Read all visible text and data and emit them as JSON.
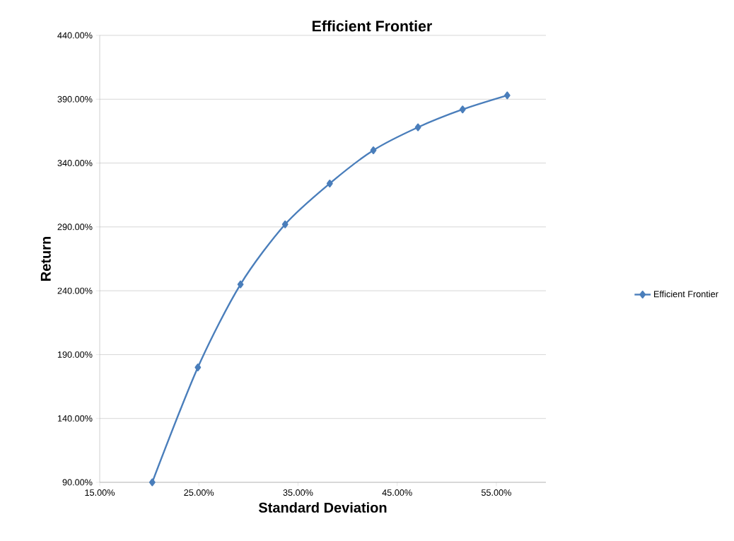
{
  "chart_data": {
    "type": "line",
    "title": "Efficient Frontier",
    "xlabel": "Standard Deviation",
    "ylabel": "Return",
    "x": [
      20.3,
      24.9,
      29.2,
      33.7,
      38.2,
      42.6,
      47.1,
      51.6,
      56.1
    ],
    "series": [
      {
        "name": "Efficient Frontier",
        "color": "#4a7ebb",
        "values": [
          90,
          180,
          245,
          292,
          324,
          350,
          368,
          382,
          393
        ]
      }
    ],
    "xlim": [
      15,
      60
    ],
    "ylim": [
      90,
      440
    ],
    "xticks": [
      {
        "value": 15,
        "label": "15.00%"
      },
      {
        "value": 25,
        "label": "25.00%"
      },
      {
        "value": 35,
        "label": "35.00%"
      },
      {
        "value": 45,
        "label": "45.00%"
      },
      {
        "value": 55,
        "label": "55.00%"
      }
    ],
    "yticks": [
      {
        "value": 90,
        "label": "90.00%"
      },
      {
        "value": 140,
        "label": "140.00%"
      },
      {
        "value": 190,
        "label": "190.00%"
      },
      {
        "value": 240,
        "label": "240.00%"
      },
      {
        "value": 290,
        "label": "290.00%"
      },
      {
        "value": 340,
        "label": "340.00%"
      },
      {
        "value": 390,
        "label": "390.00%"
      },
      {
        "value": 440,
        "label": "440.00%"
      }
    ],
    "grid": "y",
    "legend": "right",
    "marker": "diamond",
    "line_style": "solid"
  }
}
